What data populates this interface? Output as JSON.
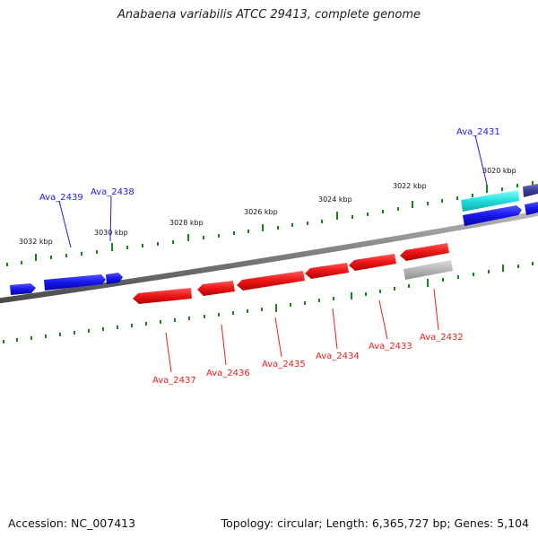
{
  "title": "Anabaena variabilis ATCC 29413, complete genome",
  "footer": {
    "accession": "Accession: NC_007413",
    "summary": "Topology: circular; Length: 6,365,727 bp; Genes: 5,104"
  },
  "colors": {
    "forward_gene": "#1a1aee",
    "reverse_gene": "#ee1a1a",
    "rna_gene": "#22dddd",
    "pseudo_gene": "#b5b5b5",
    "other_gene": "#3d3d99",
    "scale": "#118811",
    "backbone": "#7a7a7a"
  },
  "kbp_labels": [
    "3020 kbp",
    "3022 kbp",
    "3024 kbp",
    "3026 kbp",
    "3028 kbp",
    "3030 kbp",
    "3032 kbp"
  ],
  "gene_labels_forward": [
    "Ava_2431",
    "Ava_2438",
    "Ava_2439"
  ],
  "gene_labels_reverse": [
    "Ava_2432",
    "Ava_2433",
    "Ava_2434",
    "Ava_2435",
    "Ava_2436",
    "Ava_2437"
  ]
}
